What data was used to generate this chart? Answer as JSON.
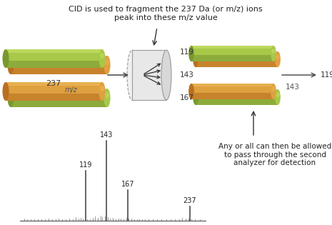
{
  "title_text": "CID is used to fragment the 237 Da (or m/z) ions\npeak into these m/z value",
  "annotation_text": "Any or all can then be allowed\nto pass through the second\nanalyzer for detection",
  "spectrum_peaks": [
    [
      119,
      0.62
    ],
    [
      143,
      1.0
    ],
    [
      167,
      0.38
    ],
    [
      237,
      0.18
    ]
  ],
  "noise_peaks": [
    [
      50,
      0.02
    ],
    [
      53,
      0.015
    ],
    [
      57,
      0.018
    ],
    [
      61,
      0.012
    ],
    [
      65,
      0.015
    ],
    [
      69,
      0.012
    ],
    [
      73,
      0.018
    ],
    [
      77,
      0.02
    ],
    [
      81,
      0.015
    ],
    [
      85,
      0.012
    ],
    [
      89,
      0.02
    ],
    [
      93,
      0.015
    ],
    [
      97,
      0.018
    ],
    [
      101,
      0.025
    ],
    [
      105,
      0.018
    ],
    [
      108,
      0.04
    ],
    [
      111,
      0.025
    ],
    [
      114,
      0.03
    ],
    [
      116,
      0.025
    ],
    [
      121,
      0.015
    ],
    [
      124,
      0.018
    ],
    [
      127,
      0.03
    ],
    [
      130,
      0.05
    ],
    [
      133,
      0.035
    ],
    [
      136,
      0.06
    ],
    [
      138,
      0.045
    ],
    [
      141,
      0.055
    ],
    [
      144,
      0.04
    ],
    [
      147,
      0.025
    ],
    [
      150,
      0.03
    ],
    [
      153,
      0.018
    ],
    [
      156,
      0.022
    ],
    [
      159,
      0.025
    ],
    [
      162,
      0.015
    ],
    [
      165,
      0.035
    ],
    [
      168,
      0.02
    ],
    [
      171,
      0.022
    ],
    [
      174,
      0.018
    ],
    [
      177,
      0.012
    ],
    [
      180,
      0.015
    ],
    [
      183,
      0.012
    ],
    [
      186,
      0.018
    ],
    [
      190,
      0.012
    ],
    [
      195,
      0.015
    ],
    [
      200,
      0.012
    ],
    [
      205,
      0.015
    ],
    [
      210,
      0.012
    ],
    [
      215,
      0.018
    ],
    [
      220,
      0.012
    ],
    [
      225,
      0.015
    ],
    [
      228,
      0.03
    ],
    [
      232,
      0.02
    ],
    [
      235,
      0.025
    ],
    [
      239,
      0.015
    ],
    [
      243,
      0.012
    ],
    [
      248,
      0.018
    ]
  ],
  "peak_color": "#3a3a3a",
  "axis_color": "#555555",
  "bg_color": "#ffffff",
  "xlim": [
    45,
    255
  ],
  "ylim": [
    0,
    1.18
  ],
  "tube_green": "#a8c84a",
  "tube_green_dark": "#7a9830",
  "tube_orange": "#dfa040",
  "tube_orange_dark": "#b87020",
  "tube_highlight": "#d0e870"
}
